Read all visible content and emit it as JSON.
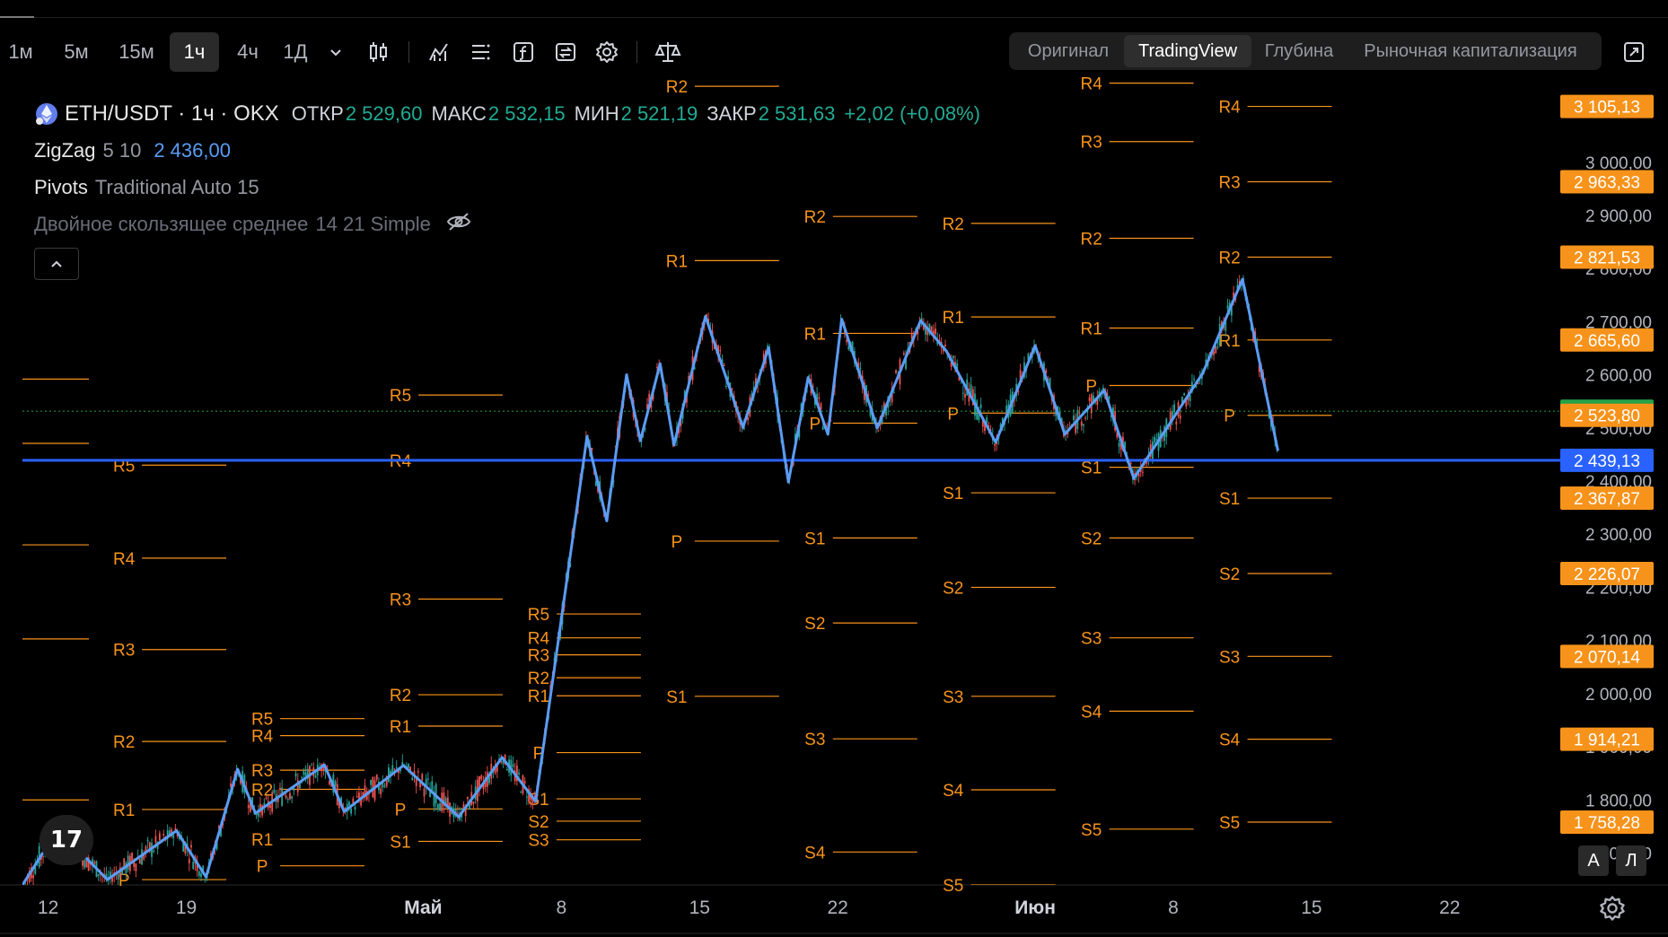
{
  "toolbar": {
    "intervals": [
      "1м",
      "5м",
      "15м",
      "1ч",
      "4ч",
      "1Д"
    ],
    "active_interval": "1ч",
    "icons": [
      "chevron-down-icon",
      "candles-icon",
      "indicators-icon",
      "layout-icon",
      "function-icon",
      "replay-icon",
      "settings-icon",
      "compare-icon"
    ],
    "view_tabs": [
      "Оригинал",
      "TradingView",
      "Глубина",
      "Рыночная капитализация"
    ],
    "active_view": "TradingView"
  },
  "legend": {
    "symbol": "ETH/USDT · 1ч · OKX",
    "ohlc": [
      {
        "k": "ОТКР",
        "v": "2 529,60"
      },
      {
        "k": "МАКС",
        "v": "2 532,15"
      },
      {
        "k": "МИН",
        "v": "2 521,19"
      },
      {
        "k": "ЗАКР",
        "v": "2 531,63"
      }
    ],
    "change": "+2,02 (+0,08%)",
    "zigzag": {
      "name": "ZigZag",
      "args": "5 10",
      "value": "2 436,00"
    },
    "pivots": {
      "name": "Pivots",
      "args": "Traditional Auto 15"
    },
    "dma": {
      "name": "Двойное скользящее среднее",
      "args": "14 21 Simple"
    }
  },
  "chart_data": {
    "type": "line",
    "symbol": "ETH/USDT",
    "exchange": "OKX",
    "interval": "1ч",
    "ylim": [
      1640,
      3150
    ],
    "price_ticks": [
      3000,
      2900,
      2800,
      2700,
      2600,
      2500,
      2400,
      2300,
      2200,
      2100,
      2000,
      1900,
      1800,
      1700
    ],
    "price_tick_labels": [
      "3 000,00",
      "2 900,00",
      "2 800,00",
      "2 700,00",
      "2 600,00",
      "2 500,00",
      "2 400,00",
      "2 300,00",
      "2 200,00",
      "2 100,00",
      "2 000,00",
      "1 900,00",
      "1 800,00",
      "1 700,00"
    ],
    "x_ticks": [
      {
        "day": 12,
        "label": "12"
      },
      {
        "day": 19,
        "label": "19"
      },
      {
        "day": 31,
        "label": "Май"
      },
      {
        "day": 38,
        "label": "8"
      },
      {
        "day": 45,
        "label": "15"
      },
      {
        "day": 52,
        "label": "22"
      },
      {
        "day": 62,
        "label": "Июн"
      },
      {
        "day": 69,
        "label": "8"
      },
      {
        "day": 76,
        "label": "15"
      },
      {
        "day": 83,
        "label": "22"
      }
    ],
    "x_range": [
      10.7,
      88.6
    ],
    "price_badges": [
      {
        "value": 3105.13,
        "label": "3 105,13",
        "color": "#f7931a"
      },
      {
        "value": 2963.33,
        "label": "2 963,33",
        "color": "#f7931a"
      },
      {
        "value": 2821.53,
        "label": "2 821,53",
        "color": "#f7931a"
      },
      {
        "value": 2665.6,
        "label": "2 665,60",
        "color": "#f7931a"
      },
      {
        "value": 2531.63,
        "label": "2 531,63",
        "color": "#26a148"
      },
      {
        "value": 2523.8,
        "label": "2 523,80",
        "color": "#f7931a"
      },
      {
        "value": 2439.13,
        "label": "2 439,13",
        "color": "#2962ff"
      },
      {
        "value": 2367.87,
        "label": "2 367,87",
        "color": "#f7931a"
      },
      {
        "value": 2226.07,
        "label": "2 226,07",
        "color": "#f7931a"
      },
      {
        "value": 2070.14,
        "label": "2 070,14",
        "color": "#f7931a"
      },
      {
        "value": 1914.21,
        "label": "1 914,21",
        "color": "#f7931a"
      },
      {
        "value": 1758.28,
        "label": "1 758,28",
        "color": "#f7931a"
      }
    ],
    "horizontal_line": {
      "value": 2439.13,
      "color": "#2962ff"
    },
    "zigzag": {
      "color": "#5b9cf6",
      "points": [
        [
          10.7,
          1640
        ],
        [
          12.5,
          1745
        ],
        [
          15.0,
          1650
        ],
        [
          18.5,
          1742
        ],
        [
          20.0,
          1655
        ],
        [
          21.6,
          1858
        ],
        [
          22.5,
          1775
        ],
        [
          26.0,
          1866
        ],
        [
          27.0,
          1778
        ],
        [
          30.0,
          1865
        ],
        [
          32.8,
          1768
        ],
        [
          35.0,
          1880
        ],
        [
          36.7,
          1797
        ],
        [
          39.3,
          2484
        ],
        [
          40.3,
          2325
        ],
        [
          41.3,
          2600
        ],
        [
          42.0,
          2476
        ],
        [
          43.0,
          2621
        ],
        [
          43.7,
          2468
        ],
        [
          45.3,
          2710
        ],
        [
          47.2,
          2501
        ],
        [
          48.5,
          2651
        ],
        [
          49.5,
          2398
        ],
        [
          50.5,
          2595
        ],
        [
          51.5,
          2488
        ],
        [
          52.2,
          2705
        ],
        [
          54.0,
          2500
        ],
        [
          56.2,
          2702
        ],
        [
          57.5,
          2645
        ],
        [
          60.0,
          2473
        ],
        [
          62.0,
          2655
        ],
        [
          63.5,
          2488
        ],
        [
          65.5,
          2571
        ],
        [
          67.0,
          2405
        ],
        [
          70.5,
          2604
        ],
        [
          72.5,
          2780
        ],
        [
          74.3,
          2457
        ]
      ]
    },
    "pivot_color": "#f7931a",
    "pivot_periods": [
      {
        "x0": 10.7,
        "x1": 14.3,
        "levels": []
      },
      {
        "x0": 14.3,
        "x1": 21.3,
        "levels": [
          {
            "name": "R5",
            "value": 2430
          },
          {
            "name": "R4",
            "value": 2255
          },
          {
            "name": "R3",
            "value": 2083
          },
          {
            "name": "R2",
            "value": 1910
          },
          {
            "name": "R1",
            "value": 1782
          },
          {
            "name": "P",
            "value": 1650
          }
        ]
      },
      {
        "x0": 21.3,
        "x1": 28.3,
        "levels": [
          {
            "name": "R5",
            "value": 1953
          },
          {
            "name": "R4",
            "value": 1921
          },
          {
            "name": "R3",
            "value": 1856
          },
          {
            "name": "R2",
            "value": 1820
          },
          {
            "name": "R1",
            "value": 1726
          },
          {
            "name": "P",
            "value": 1676
          }
        ]
      },
      {
        "x0": 28.3,
        "x1": 35.3,
        "levels": [
          {
            "name": "R5",
            "value": 2562
          },
          {
            "name": "R4",
            "value": 2439
          },
          {
            "name": "R3",
            "value": 2178
          },
          {
            "name": "R2",
            "value": 1998
          },
          {
            "name": "R1",
            "value": 1939
          },
          {
            "name": "P",
            "value": 1783
          },
          {
            "name": "S1",
            "value": 1722
          }
        ]
      },
      {
        "x0": 35.3,
        "x1": 42.3,
        "levels": [
          {
            "name": "R5",
            "value": 2150
          },
          {
            "name": "R4",
            "value": 2105
          },
          {
            "name": "R3",
            "value": 2073
          },
          {
            "name": "R2",
            "value": 2030
          },
          {
            "name": "R1",
            "value": 1996
          },
          {
            "name": "P",
            "value": 1889
          },
          {
            "name": "S1",
            "value": 1802
          },
          {
            "name": "S2",
            "value": 1760
          },
          {
            "name": "S3",
            "value": 1725
          }
        ]
      },
      {
        "x0": 42.3,
        "x1": 49.3,
        "levels": [
          {
            "name": "R2",
            "value": 3143
          },
          {
            "name": "R1",
            "value": 2815
          },
          {
            "name": "P",
            "value": 2287
          },
          {
            "name": "S1",
            "value": 1995
          }
        ]
      },
      {
        "x0": 49.3,
        "x1": 56.3,
        "levels": [
          {
            "name": "R2",
            "value": 2898
          },
          {
            "name": "R1",
            "value": 2678
          },
          {
            "name": "P",
            "value": 2509
          },
          {
            "name": "S1",
            "value": 2293
          },
          {
            "name": "S2",
            "value": 2133
          },
          {
            "name": "S3",
            "value": 1915
          },
          {
            "name": "S4",
            "value": 1702
          }
        ]
      },
      {
        "x0": 56.3,
        "x1": 63.3,
        "levels": [
          {
            "name": "R2",
            "value": 2885
          },
          {
            "name": "R1",
            "value": 2709
          },
          {
            "name": "P",
            "value": 2528
          },
          {
            "name": "S1",
            "value": 2378
          },
          {
            "name": "S2",
            "value": 2200
          },
          {
            "name": "S3",
            "value": 1995
          },
          {
            "name": "S4",
            "value": 1819
          },
          {
            "name": "S5",
            "value": 1640
          }
        ]
      },
      {
        "x0": 63.3,
        "x1": 70.3,
        "levels": [
          {
            "name": "R4",
            "value": 3149
          },
          {
            "name": "R3",
            "value": 3039
          },
          {
            "name": "R2",
            "value": 2857
          },
          {
            "name": "R1",
            "value": 2688
          },
          {
            "name": "P",
            "value": 2580
          },
          {
            "name": "S1",
            "value": 2426
          },
          {
            "name": "S2",
            "value": 2293
          },
          {
            "name": "S3",
            "value": 2105
          },
          {
            "name": "S4",
            "value": 1967
          },
          {
            "name": "S5",
            "value": 1745
          }
        ]
      },
      {
        "x0": 70.3,
        "x1": 77.3,
        "levels": [
          {
            "name": "R4",
            "value": 3105.13
          },
          {
            "name": "R3",
            "value": 2963.33
          },
          {
            "name": "R2",
            "value": 2821.53
          },
          {
            "name": "R1",
            "value": 2665.6
          },
          {
            "name": "P",
            "value": 2523.8
          },
          {
            "name": "S1",
            "value": 2367.87
          },
          {
            "name": "S2",
            "value": 2226.07
          },
          {
            "name": "S3",
            "value": 2070.14
          },
          {
            "name": "S4",
            "value": 1914.21
          },
          {
            "name": "S5",
            "value": 1758.28
          }
        ]
      }
    ],
    "last_price": {
      "value": 2531.63,
      "color": "#26a148"
    }
  },
  "bottom": {
    "logo_text": "17",
    "scale_buttons": [
      "А",
      "Л"
    ]
  }
}
